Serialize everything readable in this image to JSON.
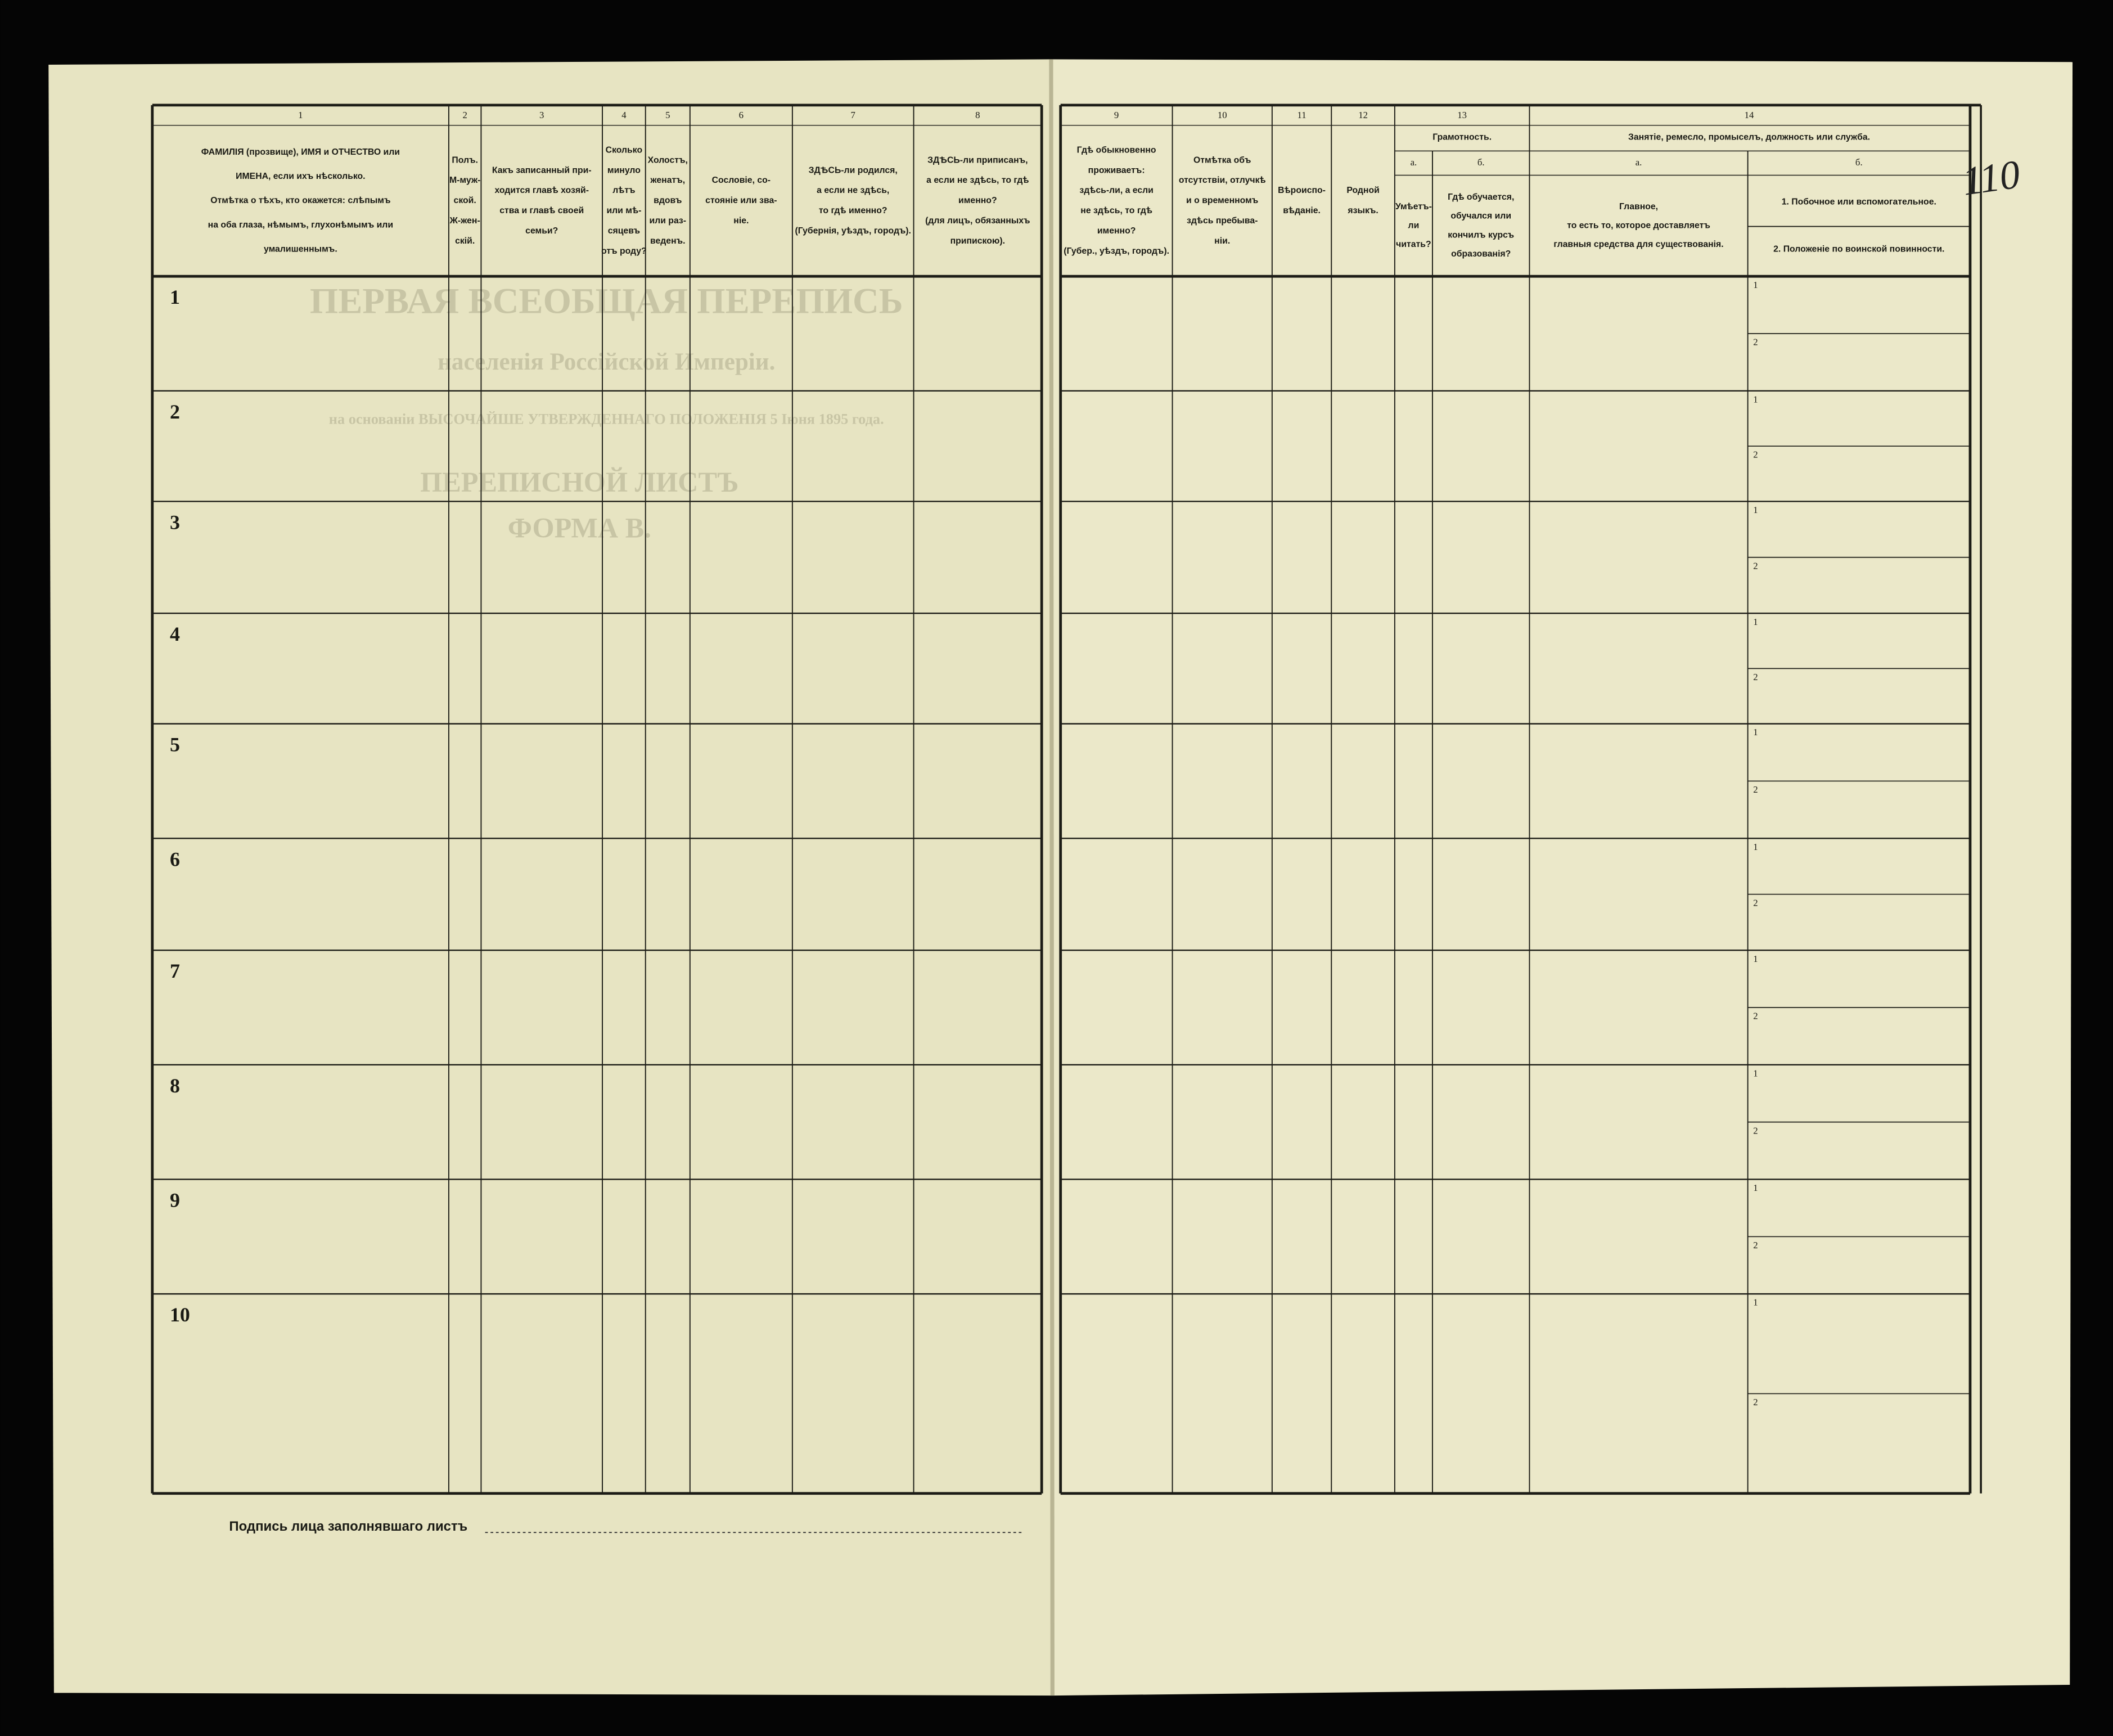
{
  "left_page": {
    "columns": [
      {
        "number": "1",
        "header": [
          "ФАМИЛІЯ (прозвище), ИМЯ и ОТЧЕСТВО или",
          "ИМЕНА, если ихъ нѣсколько.",
          "Отмѣтка о тѣхъ, кто окажется: слѣпымъ",
          "на оба глаза, нѣмымъ, глухонѣмымъ или",
          "умалишеннымъ."
        ]
      },
      {
        "number": "2",
        "header": [
          "Полъ.",
          "М-муж-",
          "ской.",
          "Ж-жен-",
          "скій."
        ]
      },
      {
        "number": "3",
        "header": [
          "Какъ записанный при-",
          "ходится главѣ хозяй-",
          "ства и главѣ своей",
          "семьи?"
        ]
      },
      {
        "number": "4",
        "header": [
          "Сколько",
          "минуло",
          "лѣтъ",
          "или мѣ-",
          "сяцевъ",
          "отъ роду?"
        ]
      },
      {
        "number": "5",
        "header": [
          "Холостъ,",
          "женатъ,",
          "вдовъ",
          "или раз-",
          "веденъ."
        ]
      },
      {
        "number": "6",
        "header": [
          "Сословіе, со-",
          "стояніе или зва-",
          "ніе."
        ]
      },
      {
        "number": "7",
        "header": [
          "ЗДѢСЬ-ли родился,",
          "а если не здѣсь,",
          "то гдѣ именно?",
          "(Губернія, уѣздъ, городъ)."
        ]
      },
      {
        "number": "8",
        "header": [
          "ЗДѢСЬ-ли приписанъ,",
          "а если не здѣсь, то гдѣ",
          "именно?",
          "(для лицъ, обязанныхъ",
          "припискою)."
        ]
      }
    ],
    "rows": [
      "1",
      "2",
      "3",
      "4",
      "5",
      "6",
      "7",
      "8",
      "9",
      "10"
    ],
    "signature": "Подпись лица заполнявшаго листъ"
  },
  "right_page": {
    "columns": [
      {
        "number": "9",
        "header": [
          "Гдѣ обыкновенно",
          "проживаетъ:",
          "здѣсь-ли, а если",
          "не здѣсь, то гдѣ",
          "именно?",
          "(Губер., уѣздъ, городъ)."
        ]
      },
      {
        "number": "10",
        "header": [
          "Отмѣтка объ",
          "отсутствіи, отлучкѣ",
          "и о временномъ",
          "здѣсь пребыва-",
          "ніи."
        ]
      },
      {
        "number": "11",
        "header": [
          "Вѣроиспо-",
          "вѣданіе."
        ]
      },
      {
        "number": "12",
        "header": [
          "Родной",
          "языкъ."
        ]
      }
    ],
    "literacy": {
      "number": "13",
      "title": "Грамотность.",
      "subcolumns": [
        {
          "letter": "а.",
          "header": [
            "Умѣетъ-",
            "ли",
            "читать?"
          ]
        },
        {
          "letter": "б.",
          "header": [
            "Гдѣ обучается,",
            "обучался или",
            "кончилъ курсъ",
            "образованія?"
          ]
        }
      ]
    },
    "occupation": {
      "number": "14",
      "title": "Занятіе, ремесло, промыселъ, должность или служба.",
      "subcolumns": [
        {
          "letter": "а.",
          "header": [
            "Главное,",
            "то есть то, которое доставляетъ",
            "главныя средства для существованія."
          ]
        },
        {
          "letter": "б.",
          "header": [
            "1. Побочное или вспомогательное.",
            "2. Положеніе по воинской повинности."
          ]
        }
      ],
      "subrow_labels": [
        "1",
        "2"
      ]
    }
  },
  "handwritten": "110",
  "bleed_through": [
    "ПЕРВАЯ ВСЕОБЩАЯ ПЕРЕПИСЬ",
    "населенія Россійской Имперіи.",
    "на основаніи ВЫСОЧАЙШЕ УТВЕРЖДЕННАГО ПОЛОЖЕНІЯ 5 Іюня 1895 года.",
    "ПЕРЕПИСНОЙ ЛИСТЪ",
    "ФОРМА В."
  ]
}
